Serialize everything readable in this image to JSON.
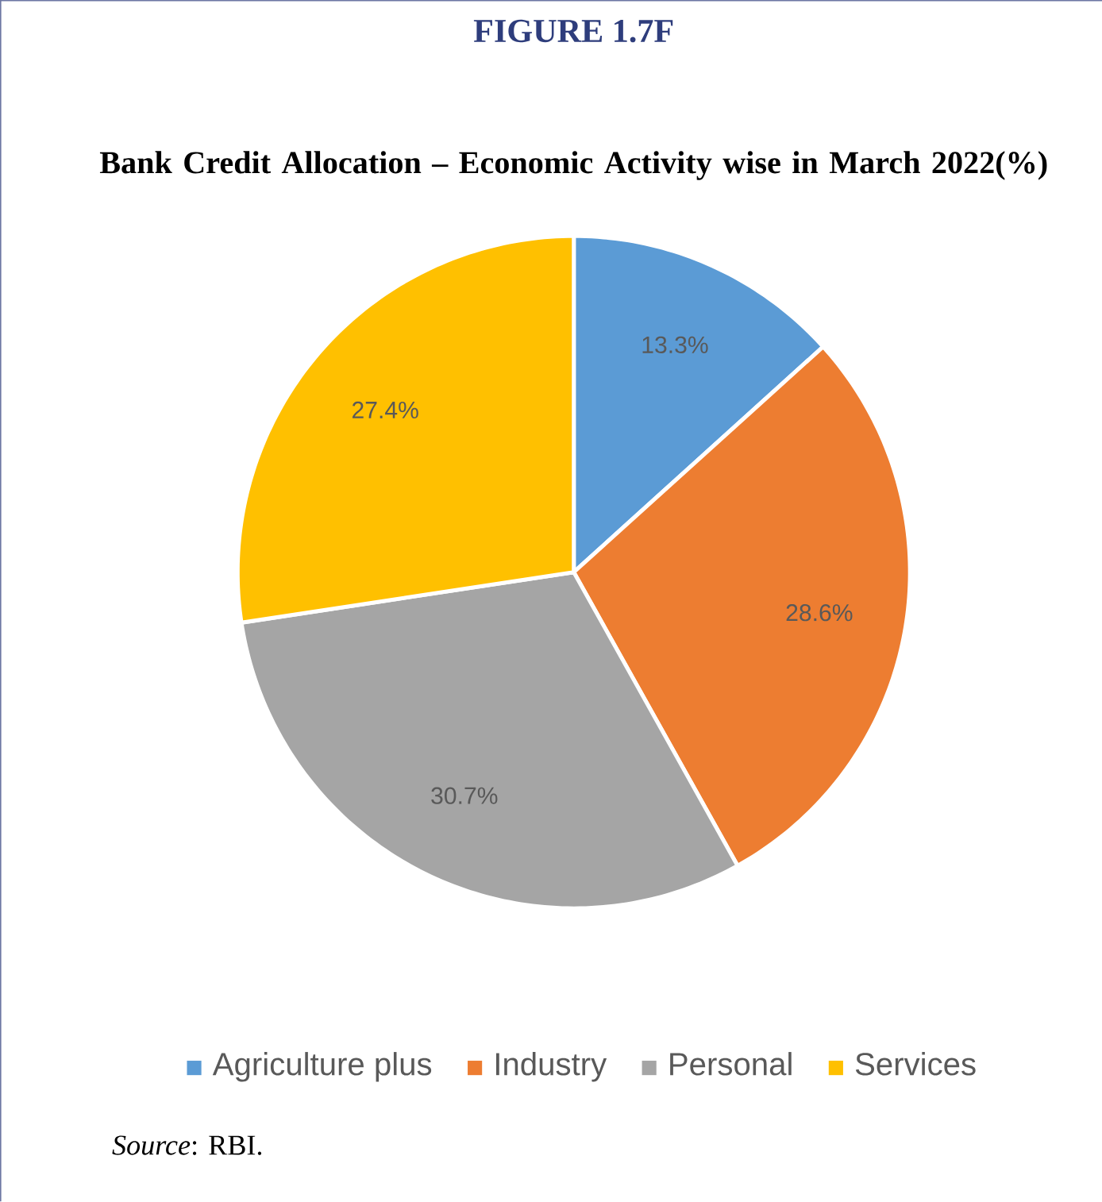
{
  "chart_data": {
    "type": "pie",
    "title": "FIGURE 1.7F",
    "subtitle": "Bank Credit Allocation – Economic Activity wise in March 2022(%)",
    "categories": [
      "Agriculture plus",
      "Industry",
      "Personal",
      "Services"
    ],
    "values": [
      13.3,
      28.6,
      30.7,
      27.4
    ],
    "colors": [
      "#5b9bd5",
      "#ed7d31",
      "#a5a5a5",
      "#ffc000"
    ],
    "value_labels": [
      "13.3%",
      "28.6%",
      "30.7%",
      "27.4%"
    ],
    "legend": "bottom",
    "annotations": [
      "*Source*:   RBI."
    ]
  }
}
